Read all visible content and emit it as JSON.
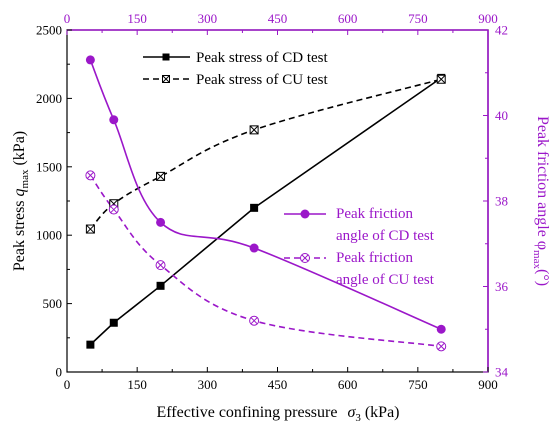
{
  "chart_data": {
    "type": "line",
    "xlabel": "Effective confining pressure",
    "xlabel_symbol": "σ",
    "xlabel_subscript": "3",
    "xlabel_unit": "(kPa)",
    "y1label": "Peak stress",
    "y1label_symbol": "q",
    "y1label_subscript": "max",
    "y1label_unit": "(kPa)",
    "y2label": "Peak friction angle φ",
    "y2label_subscript": "max",
    "y2label_unit": "(°)",
    "xlim": [
      0,
      900
    ],
    "x_ticks": [
      0,
      150,
      300,
      450,
      600,
      750,
      900
    ],
    "top_ticks": [
      0,
      150,
      300,
      450,
      600,
      750,
      900
    ],
    "y1lim": [
      0,
      2500
    ],
    "y1_ticks": [
      0,
      500,
      1000,
      1500,
      2000,
      2500
    ],
    "y2lim": [
      34,
      42
    ],
    "y2_ticks": [
      34,
      36,
      38,
      40,
      42
    ],
    "grid": false,
    "colors": {
      "black": "#000000",
      "purple": "#9b17c9"
    },
    "series": [
      {
        "name": "Peak stress of CD test",
        "axis": "left",
        "style": "solid-square",
        "x": [
          50,
          100,
          200,
          400,
          800
        ],
        "y": [
          200,
          360,
          630,
          1200,
          2150
        ]
      },
      {
        "name": "Peak stress of CU test",
        "axis": "left",
        "style": "dashed-crossed-square",
        "x": [
          50,
          100,
          200,
          400,
          800
        ],
        "y": [
          1045,
          1230,
          1430,
          1770,
          2140
        ]
      },
      {
        "name": "Peak friction angle of CD test",
        "axis": "right",
        "style": "solid-circle",
        "x": [
          50,
          100,
          200,
          400,
          800
        ],
        "y": [
          41.3,
          39.9,
          37.5,
          36.9,
          35.0
        ]
      },
      {
        "name": "Peak friction angle of CU test",
        "axis": "right",
        "style": "dashed-crossed-circle",
        "x": [
          50,
          100,
          200,
          400,
          800
        ],
        "y": [
          38.6,
          37.8,
          36.5,
          35.2,
          34.6
        ]
      }
    ],
    "legend_top": {
      "placement": "top-center",
      "items": [
        "Peak stress of CD test",
        "Peak stress of CU test"
      ]
    },
    "legend_right": {
      "placement": "middle-right",
      "cd_line1": "Peak friction",
      "cd_line2": "angle of CD test",
      "cu_line1": "Peak friction",
      "cu_line2": "angle of CU test"
    }
  }
}
